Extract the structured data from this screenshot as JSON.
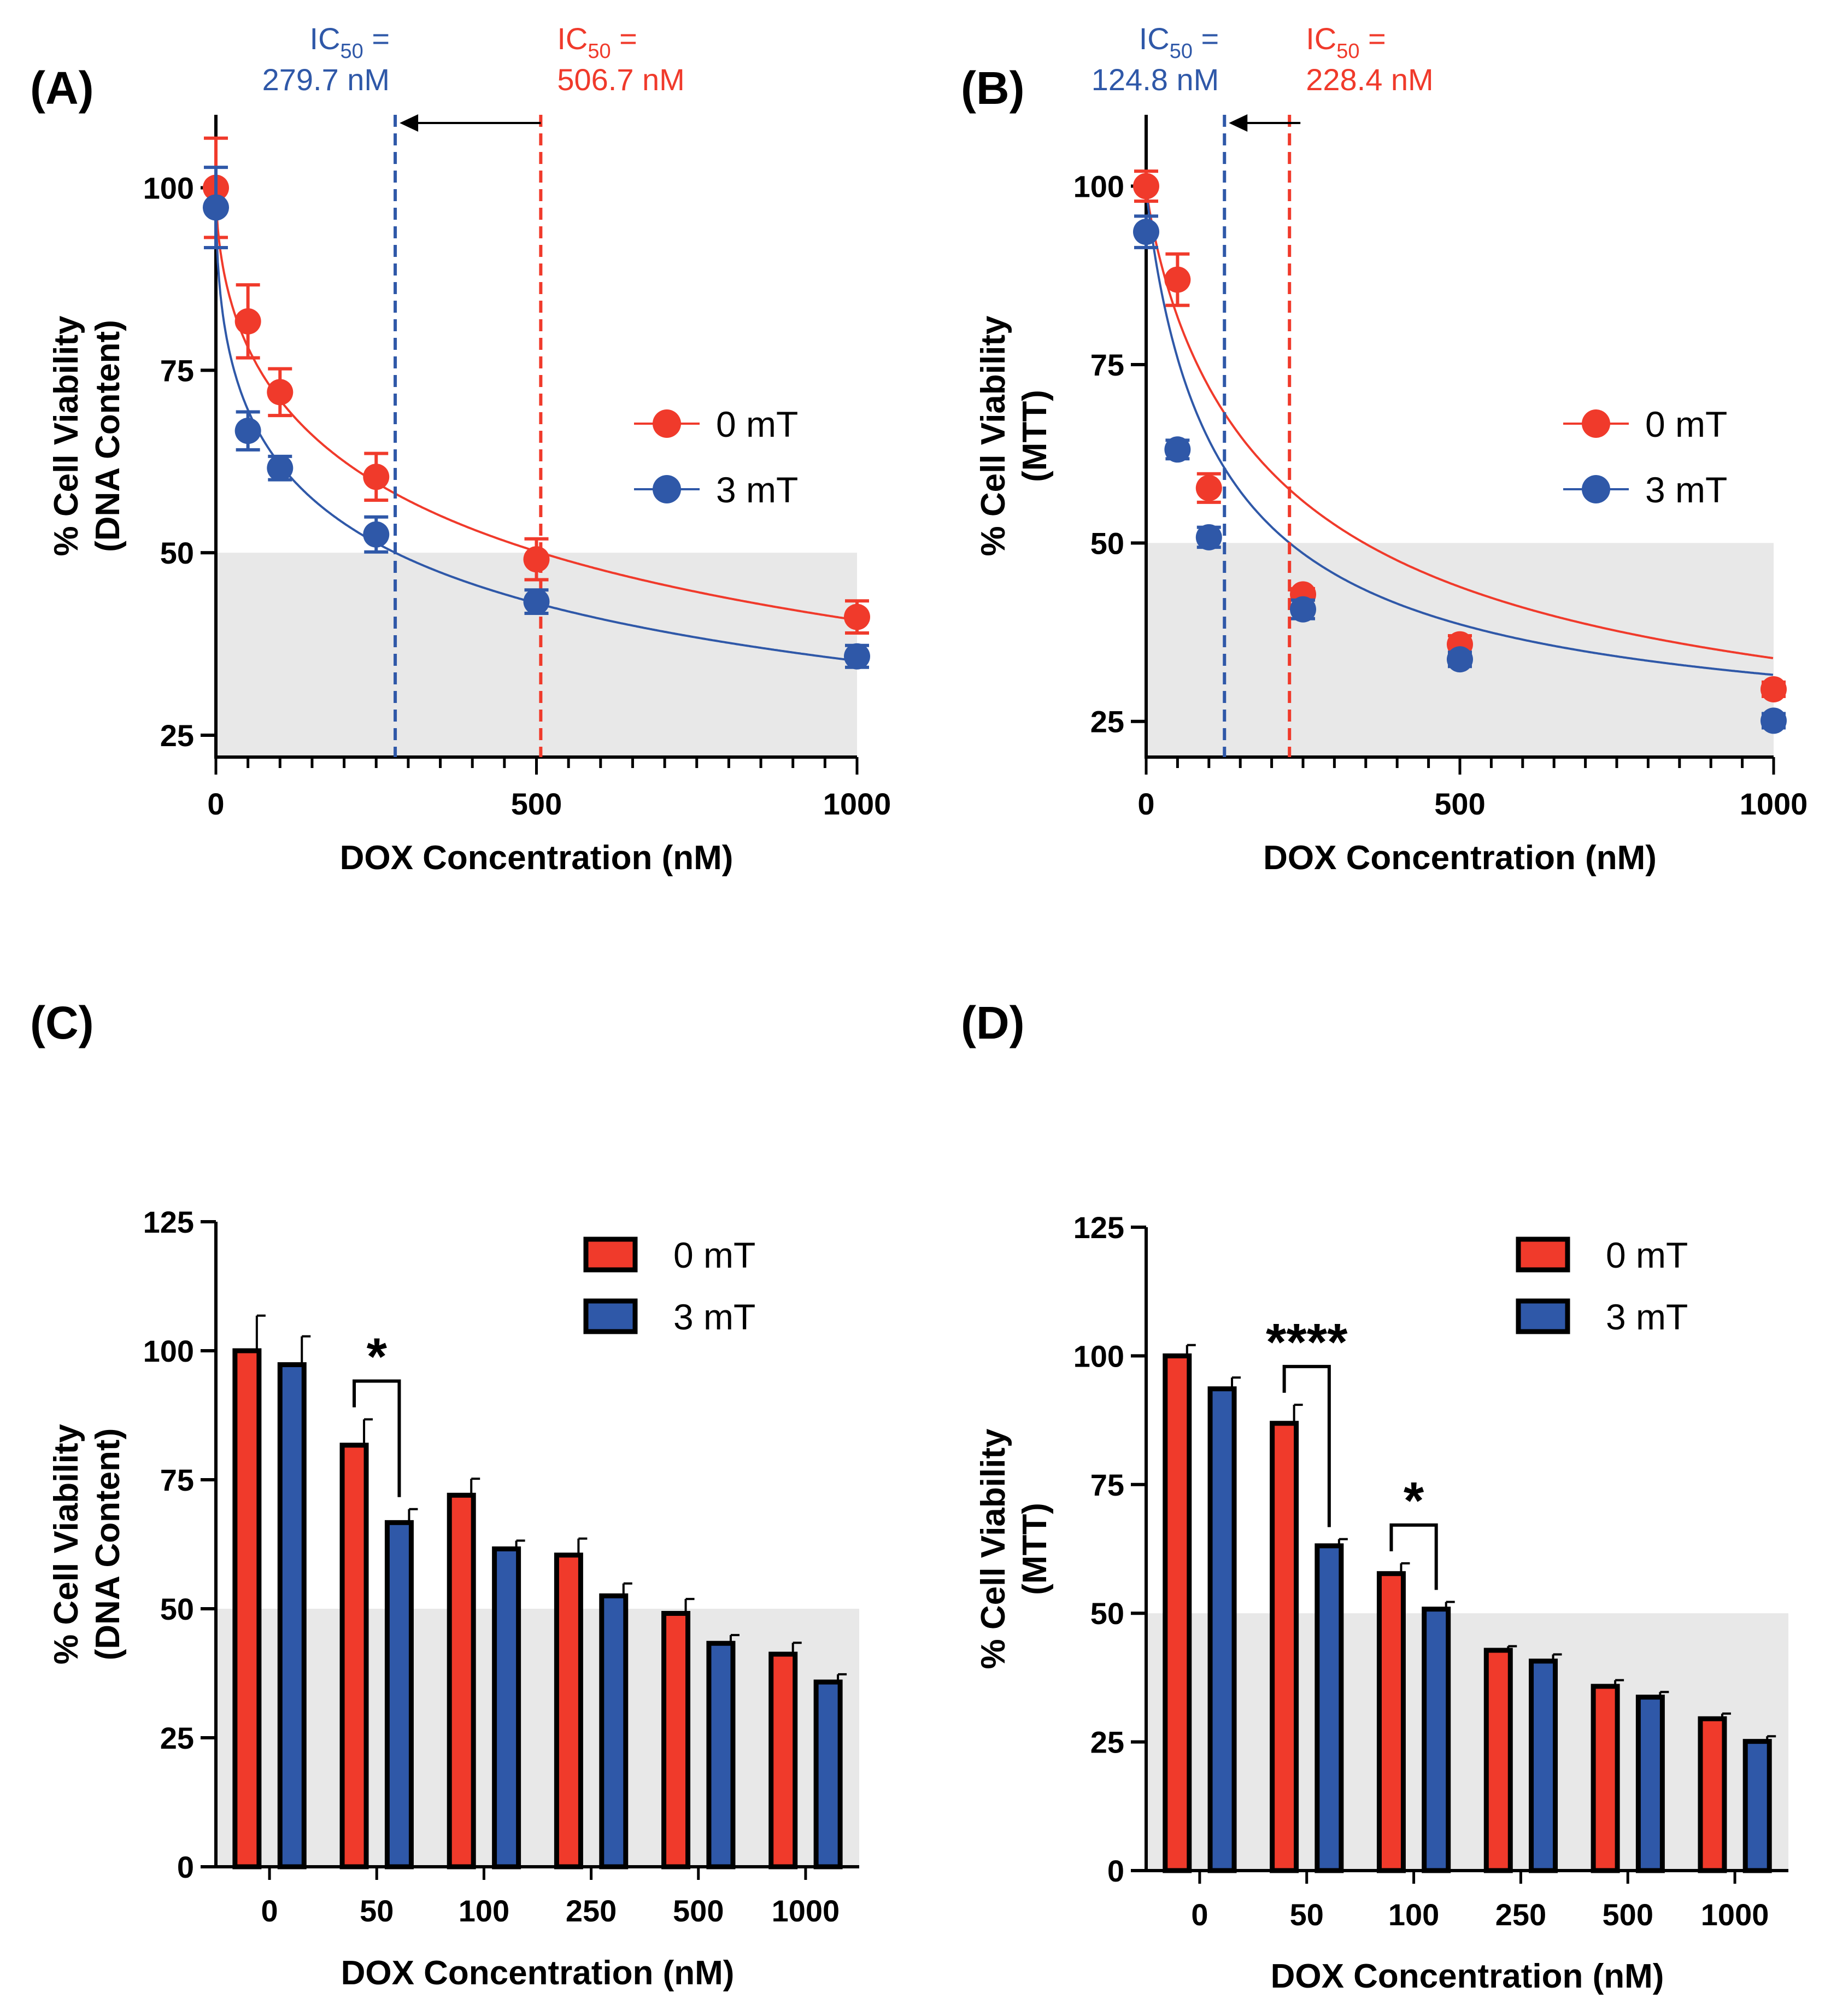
{
  "colors": {
    "red": "#F03A2B",
    "blue": "#2F58A8",
    "shade": "#E8E8E8",
    "axis": "#000000"
  },
  "chart_data": [
    {
      "id": "A",
      "type": "scatter",
      "panel_label": "(A)",
      "xlabel": "DOX Concentration (nM)",
      "ylabel_line1": "% Cell Viability",
      "ylabel_line2": "(DNA Content)",
      "xlim": [
        0,
        1000
      ],
      "ylim": [
        22,
        110
      ],
      "xticks": [
        0,
        500,
        1000
      ],
      "yticks": [
        25,
        50,
        75,
        100
      ],
      "shaded_below": 50,
      "legend": [
        "0 mT",
        "3 mT"
      ],
      "series": [
        {
          "name": "0 mT",
          "color": "red",
          "x": [
            0,
            50,
            100,
            250,
            500,
            1000
          ],
          "y": [
            100,
            81.7,
            72.0,
            60.4,
            49.1,
            41.2
          ],
          "err": [
            6.8,
            5.0,
            3.2,
            3.2,
            2.8,
            2.2
          ],
          "curve": {
            "top": 100,
            "ic50": 506.7,
            "hill": 0.55,
            "bottom": 0
          }
        },
        {
          "name": "3 mT",
          "color": "blue",
          "x": [
            0,
            50,
            100,
            250,
            500,
            1000
          ],
          "y": [
            97.3,
            66.7,
            61.6,
            52.5,
            43.3,
            35.8
          ],
          "err": [
            5.5,
            2.6,
            1.6,
            2.4,
            1.6,
            1.5
          ],
          "curve": {
            "top": 100,
            "ic50": 279.7,
            "hill": 0.48,
            "bottom": 0
          }
        }
      ],
      "ic50": [
        {
          "series": "3 mT",
          "value": 279.7,
          "prefix": "IC",
          "subscript": "50",
          "suffix": " =",
          "value_text": "279.7 nM"
        },
        {
          "series": "0 mT",
          "value": 506.7,
          "prefix": "IC",
          "subscript": "50",
          "suffix": " =",
          "value_text": "506.7 nM"
        }
      ]
    },
    {
      "id": "B",
      "type": "scatter",
      "panel_label": "(B)",
      "xlabel": "DOX Concentration (nM)",
      "ylabel_line1": "% Cell Viability",
      "ylabel_line2": "(MTT)",
      "xlim": [
        0,
        1000
      ],
      "ylim": [
        20,
        110
      ],
      "xticks": [
        0,
        500,
        1000
      ],
      "yticks": [
        25,
        50,
        75,
        100
      ],
      "shaded_below": 50,
      "legend": [
        "0 mT",
        "3 mT"
      ],
      "series": [
        {
          "name": "0 mT",
          "color": "red",
          "x": [
            0,
            50,
            100,
            250,
            500,
            1000
          ],
          "y": [
            100,
            86.9,
            57.7,
            42.8,
            35.8,
            29.5
          ],
          "err": [
            2.1,
            3.6,
            2.0,
            0.8,
            1.2,
            1.0
          ],
          "curve": {
            "top": 100,
            "ic50": 228.4,
            "hill": 0.85,
            "bottom": 15
          }
        },
        {
          "name": "3 mT",
          "color": "blue",
          "x": [
            0,
            50,
            100,
            250,
            500,
            1000
          ],
          "y": [
            93.6,
            63.1,
            50.8,
            40.7,
            33.7,
            25.1
          ],
          "err": [
            2.2,
            1.3,
            1.4,
            1.3,
            1.0,
            1.0
          ],
          "curve": {
            "top": 100,
            "ic50": 124.8,
            "hill": 0.9,
            "bottom": 21
          }
        }
      ],
      "ic50": [
        {
          "series": "3 mT",
          "value": 124.8,
          "prefix": "IC",
          "subscript": "50",
          "suffix": " =",
          "value_text": "124.8 nM"
        },
        {
          "series": "0 mT",
          "value": 228.4,
          "prefix": "IC",
          "subscript": "50",
          "suffix": " =",
          "value_text": "228.4 nM"
        }
      ]
    },
    {
      "id": "C",
      "type": "bar",
      "panel_label": "(C)",
      "xlabel": "DOX Concentration (nM)",
      "ylabel_line1": "% Cell Viability",
      "ylabel_line2": "(DNA Content)",
      "categories": [
        "0",
        "50",
        "100",
        "250",
        "500",
        "1000"
      ],
      "ylim": [
        0,
        125
      ],
      "yticks": [
        0,
        25,
        50,
        75,
        100,
        125
      ],
      "shaded_below": 50,
      "legend": [
        "0 mT",
        "3 mT"
      ],
      "series": [
        {
          "name": "0 mT",
          "color": "red",
          "values": [
            100,
            81.7,
            72.0,
            60.4,
            49.1,
            41.2
          ],
          "err": [
            6.8,
            5.0,
            3.2,
            3.2,
            2.8,
            2.2
          ]
        },
        {
          "name": "3 mT",
          "color": "blue",
          "values": [
            97.3,
            66.7,
            61.6,
            52.5,
            43.3,
            35.8
          ],
          "err": [
            5.5,
            2.6,
            1.6,
            2.4,
            1.6,
            1.5
          ]
        }
      ],
      "significance": [
        {
          "category_index": 1,
          "label": "*"
        }
      ]
    },
    {
      "id": "D",
      "type": "bar",
      "panel_label": "(D)",
      "xlabel": "DOX Concentration (nM)",
      "ylabel_line1": "% Cell Viability",
      "ylabel_line2": "(MTT)",
      "categories": [
        "0",
        "50",
        "100",
        "250",
        "500",
        "1000"
      ],
      "ylim": [
        0,
        125
      ],
      "yticks": [
        0,
        25,
        50,
        75,
        100,
        125
      ],
      "shaded_below": 50,
      "legend": [
        "0 mT",
        "3 mT"
      ],
      "series": [
        {
          "name": "0 mT",
          "color": "red",
          "values": [
            100,
            86.9,
            57.7,
            42.8,
            35.8,
            29.5
          ],
          "err": [
            2.1,
            3.6,
            2.0,
            0.8,
            1.2,
            1.0
          ]
        },
        {
          "name": "3 mT",
          "color": "blue",
          "values": [
            93.6,
            63.1,
            50.8,
            40.7,
            33.7,
            25.1
          ],
          "err": [
            2.2,
            1.3,
            1.4,
            1.3,
            1.0,
            1.0
          ]
        }
      ],
      "significance": [
        {
          "category_index": 1,
          "label": "****"
        },
        {
          "category_index": 2,
          "label": "*"
        }
      ]
    }
  ]
}
